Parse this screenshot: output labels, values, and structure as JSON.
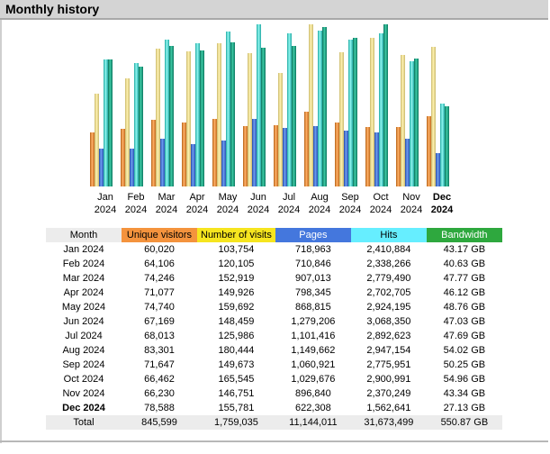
{
  "panel": {
    "title": "Monthly history"
  },
  "colors": {
    "unique_visitors": "#f4933d",
    "visits": "#f6e51f",
    "pages": "#4477dd",
    "hits": "#66eeff",
    "bandwidth": "#2ea83e"
  },
  "table": {
    "headers": {
      "month": "Month",
      "unique_visitors": "Unique visitors",
      "visits": "Number of visits",
      "pages": "Pages",
      "hits": "Hits",
      "bandwidth": "Bandwidth"
    },
    "rows": [
      {
        "month": "Jan 2024",
        "unique_visitors": "60,020",
        "visits": "103,754",
        "pages": "718,963",
        "hits": "2,410,884",
        "bandwidth": "43.17 GB"
      },
      {
        "month": "Feb 2024",
        "unique_visitors": "64,106",
        "visits": "120,105",
        "pages": "710,846",
        "hits": "2,338,266",
        "bandwidth": "40.63 GB"
      },
      {
        "month": "Mar 2024",
        "unique_visitors": "74,246",
        "visits": "152,919",
        "pages": "907,013",
        "hits": "2,779,490",
        "bandwidth": "47.77 GB"
      },
      {
        "month": "Apr 2024",
        "unique_visitors": "71,077",
        "visits": "149,926",
        "pages": "798,345",
        "hits": "2,702,705",
        "bandwidth": "46.12 GB"
      },
      {
        "month": "May 2024",
        "unique_visitors": "74,740",
        "visits": "159,692",
        "pages": "868,815",
        "hits": "2,924,195",
        "bandwidth": "48.76 GB"
      },
      {
        "month": "Jun 2024",
        "unique_visitors": "67,169",
        "visits": "148,459",
        "pages": "1,279,206",
        "hits": "3,068,350",
        "bandwidth": "47.03 GB"
      },
      {
        "month": "Jul 2024",
        "unique_visitors": "68,013",
        "visits": "125,986",
        "pages": "1,101,416",
        "hits": "2,892,623",
        "bandwidth": "47.69 GB"
      },
      {
        "month": "Aug 2024",
        "unique_visitors": "83,301",
        "visits": "180,444",
        "pages": "1,149,662",
        "hits": "2,947,154",
        "bandwidth": "54.02 GB"
      },
      {
        "month": "Sep 2024",
        "unique_visitors": "71,647",
        "visits": "149,673",
        "pages": "1,060,921",
        "hits": "2,775,951",
        "bandwidth": "50.25 GB"
      },
      {
        "month": "Oct 2024",
        "unique_visitors": "66,462",
        "visits": "165,545",
        "pages": "1,029,676",
        "hits": "2,900,991",
        "bandwidth": "54.96 GB"
      },
      {
        "month": "Nov 2024",
        "unique_visitors": "66,230",
        "visits": "146,751",
        "pages": "896,840",
        "hits": "2,370,249",
        "bandwidth": "43.34 GB"
      },
      {
        "month": "Dec 2024",
        "unique_visitors": "78,588",
        "visits": "155,781",
        "pages": "622,308",
        "hits": "1,562,641",
        "bandwidth": "27.13 GB"
      }
    ],
    "total": {
      "month": "Total",
      "unique_visitors": "845,599",
      "visits": "1,759,035",
      "pages": "11,144,011",
      "hits": "31,673,499",
      "bandwidth": "550.87 GB"
    }
  },
  "chart_data": {
    "type": "bar",
    "categories": [
      "Jan",
      "Feb",
      "Mar",
      "Apr",
      "May",
      "Jun",
      "Jul",
      "Aug",
      "Sep",
      "Oct",
      "Nov",
      "Dec"
    ],
    "years": [
      "2024",
      "2024",
      "2024",
      "2024",
      "2024",
      "2024",
      "2024",
      "2024",
      "2024",
      "2024",
      "2024",
      "2024"
    ],
    "current_index": 11,
    "series": [
      {
        "name": "Unique visitors",
        "values": [
          60020,
          64106,
          74246,
          71077,
          74740,
          67169,
          68013,
          83301,
          71647,
          66462,
          66230,
          78588
        ]
      },
      {
        "name": "Number of visits",
        "values": [
          103754,
          120105,
          152919,
          149926,
          159692,
          148459,
          125986,
          180444,
          149673,
          165545,
          146751,
          155781
        ]
      },
      {
        "name": "Pages",
        "values": [
          718963,
          710846,
          907013,
          798345,
          868815,
          1279206,
          1101416,
          1149662,
          1060921,
          1029676,
          896840,
          622308
        ]
      },
      {
        "name": "Hits",
        "values": [
          2410884,
          2338266,
          2779490,
          2702705,
          2924195,
          3068350,
          2892623,
          2947154,
          2775951,
          2900991,
          2370249,
          1562641
        ]
      },
      {
        "name": "Bandwidth",
        "values": [
          43.17,
          40.63,
          47.77,
          46.12,
          48.76,
          47.03,
          47.69,
          54.02,
          50.25,
          54.96,
          43.34,
          27.13
        ]
      }
    ]
  }
}
